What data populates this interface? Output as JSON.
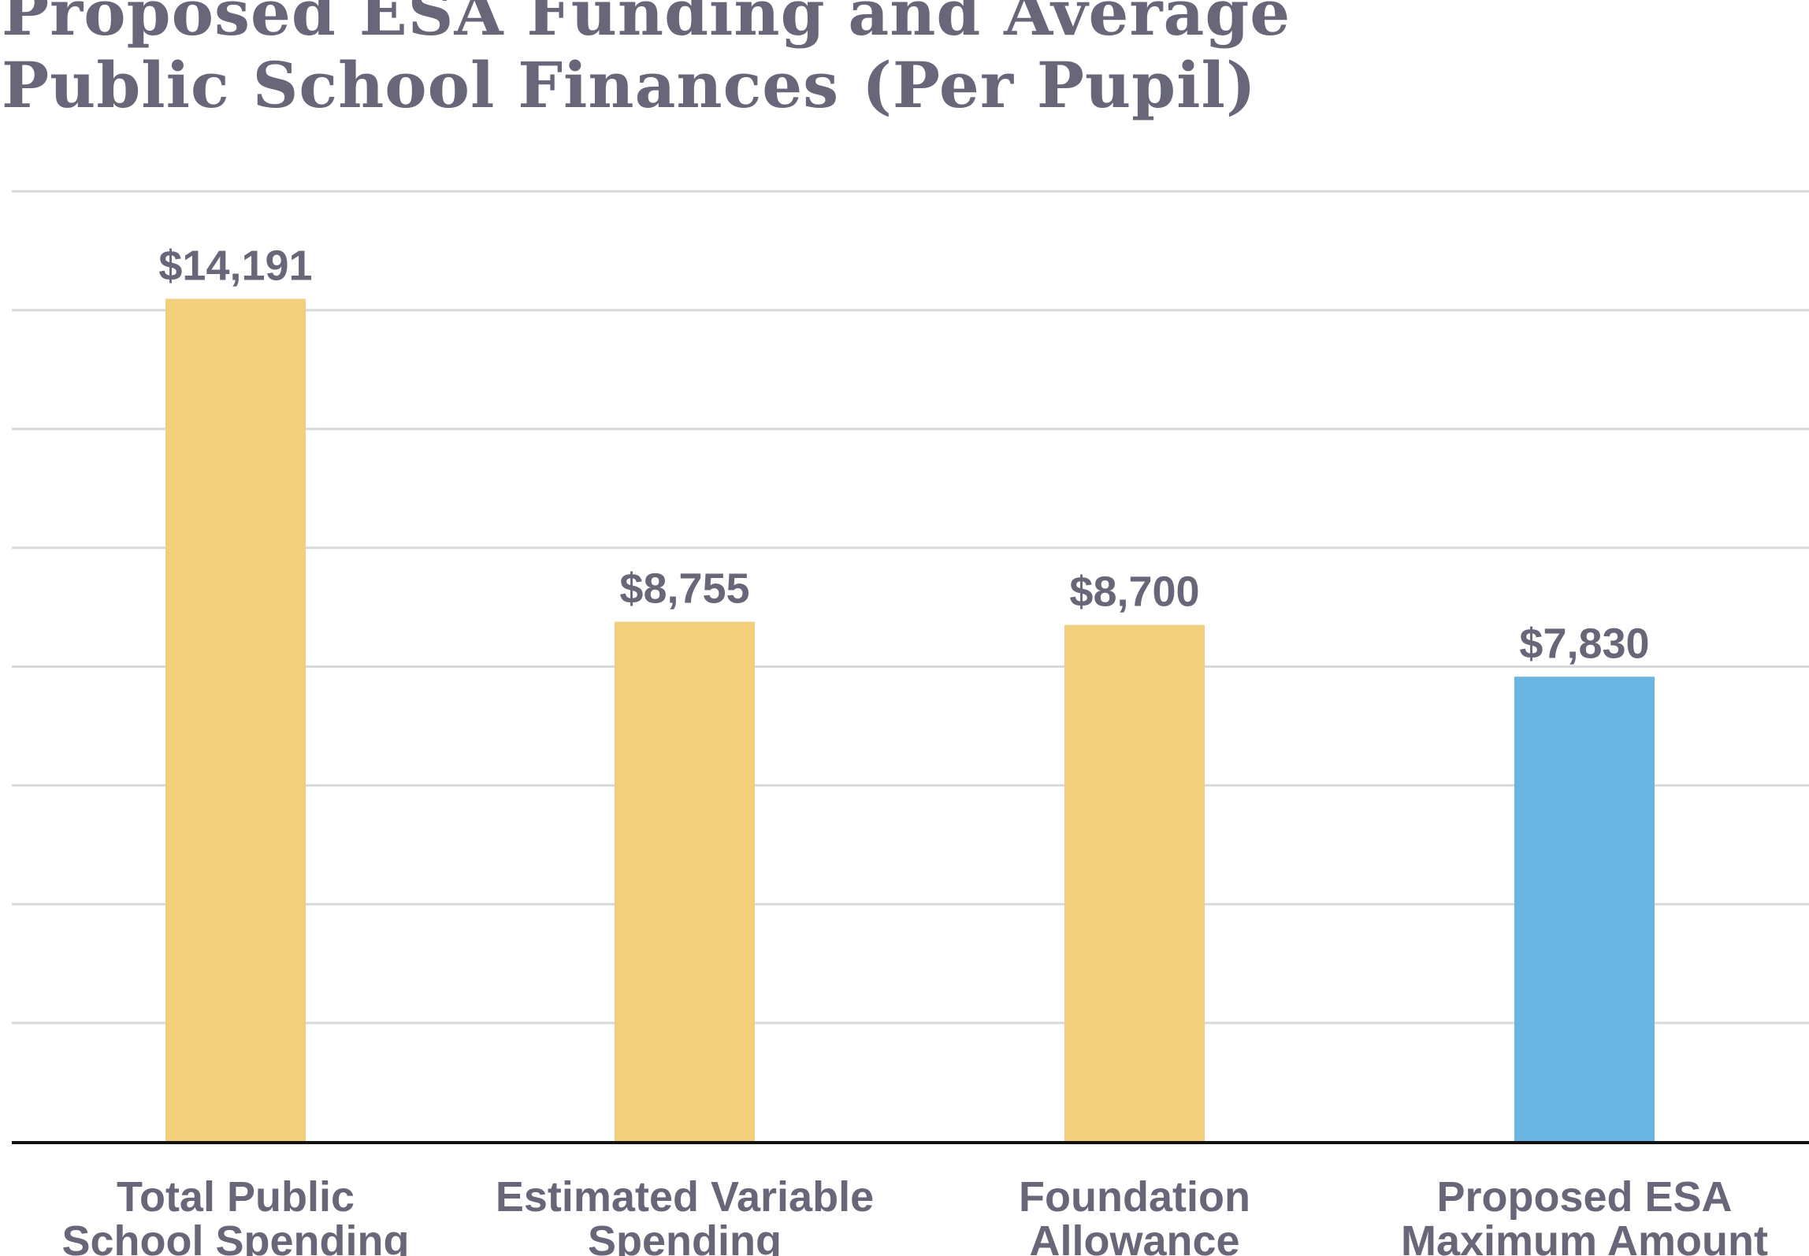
{
  "chart_data": {
    "type": "bar",
    "title": "Proposed ESA Funding and Average Public School Finances (Per Pupil)",
    "title_lines": [
      "Proposed ESA Funding and Average",
      "Public School Finances (Per Pupil)"
    ],
    "categories": [
      [
        "Total Public",
        "School Spending"
      ],
      [
        "Estimated Variable",
        "Spending"
      ],
      [
        "Foundation",
        "Allowance"
      ],
      [
        "Proposed ESA",
        "Maximum Amount"
      ]
    ],
    "values": [
      14191,
      8755,
      8700,
      7830
    ],
    "data_labels": [
      "$14,191",
      "$8,755",
      "$8,700",
      "$7,830"
    ],
    "colors": [
      "#F1CF7D",
      "#F1CF7D",
      "#F1CF7D",
      "#6BB5E3"
    ],
    "xlabel": "",
    "ylabel": "",
    "ylim": [
      0,
      16000
    ],
    "grid_step": 2000,
    "grid": true,
    "y_tick_labels_shown": false,
    "text_color": "#676779"
  }
}
